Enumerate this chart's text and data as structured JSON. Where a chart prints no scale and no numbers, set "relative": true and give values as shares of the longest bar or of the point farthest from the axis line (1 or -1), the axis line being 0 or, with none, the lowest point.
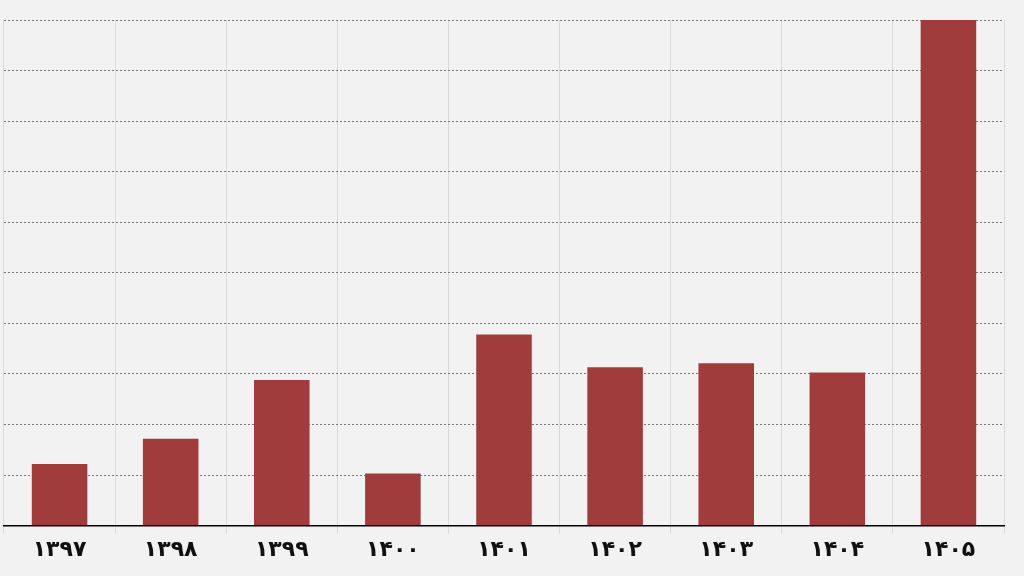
{
  "chart_data": {
    "type": "bar",
    "relative": true,
    "categories": [
      "۱۳۹۷",
      "۱۳۹۸",
      "۱۳۹۹",
      "۱۴۰۰",
      "۱۴۰۱",
      "۱۴۰۲",
      "۱۴۰۳",
      "۱۴۰۴",
      "۱۴۰۵"
    ],
    "values": [
      0.122,
      0.172,
      0.288,
      0.103,
      0.378,
      0.313,
      0.321,
      0.303,
      1
    ],
    "color": "#a03c3c",
    "grid": true
  }
}
